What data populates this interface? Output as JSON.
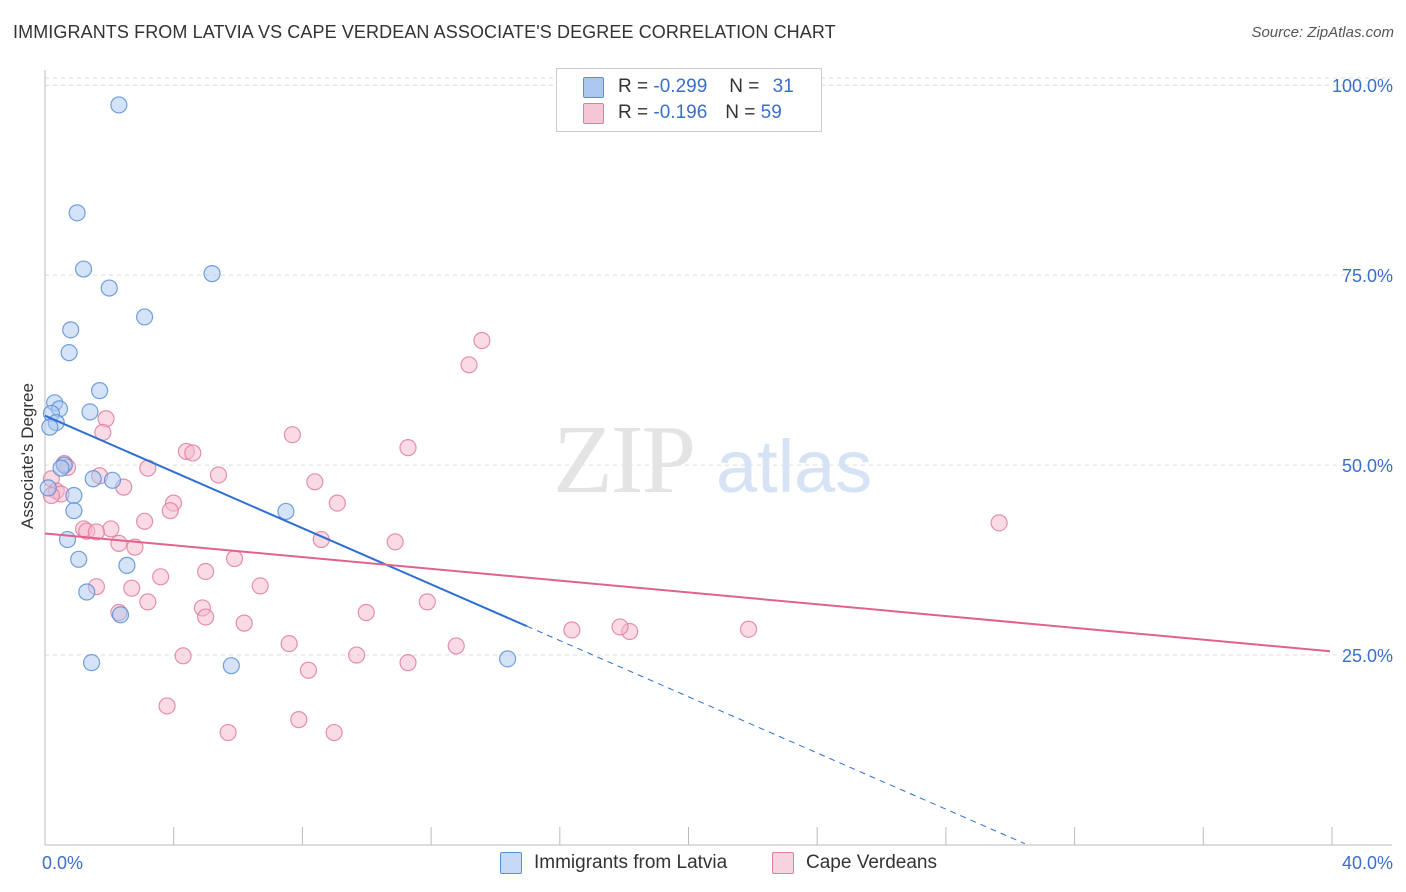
{
  "header": {
    "title": "IMMIGRANTS FROM LATVIA VS CAPE VERDEAN ASSOCIATE'S DEGREE CORRELATION CHART",
    "source": "Source: ZipAtlas.com"
  },
  "legend": {
    "rows": [
      {
        "r_label": "R = ",
        "r_value": "-0.299",
        "n_label": "N = ",
        "n_value": "31"
      },
      {
        "r_label": "R = ",
        "r_value": "-0.196",
        "n_label": "N = ",
        "n_value": "59"
      }
    ]
  },
  "colors": {
    "blue_fill": "#aac8ef",
    "blue_stroke": "#5b8fd6",
    "blue_line": "#2f6fd1",
    "pink_fill": "#f5b8cb",
    "pink_stroke": "#e07ea0",
    "pink_line": "#e0628e",
    "grid": "#dddddd",
    "tick_label": "#3a6fcc"
  },
  "chart_data": {
    "type": "scatter",
    "title": "IMMIGRANTS FROM LATVIA VS CAPE VERDEAN ASSOCIATE'S DEGREE CORRELATION CHART",
    "xlabel": "",
    "ylabel": "Associate's Degree",
    "xlim": [
      0,
      40
    ],
    "ylim": [
      0,
      102
    ],
    "x_tick_labels": [
      "0.0%",
      "40.0%"
    ],
    "y_ticks": [
      25,
      50,
      75,
      100
    ],
    "y_tick_labels": [
      "25.0%",
      "50.0%",
      "75.0%",
      "100.0%"
    ],
    "grid": true,
    "legend_position": "top-center",
    "watermark": {
      "zip": "ZIP",
      "atlas": "atlas"
    },
    "series": [
      {
        "name": "Immigrants from Latvia",
        "color": "blue",
        "trend": {
          "x0": 0,
          "y0": 56.5,
          "x1": 15,
          "y1": 28.8,
          "dash_to_x": 30.5
        },
        "points": [
          [
            2.3,
            97.4
          ],
          [
            1.0,
            83.2
          ],
          [
            1.2,
            75.8
          ],
          [
            5.2,
            75.2
          ],
          [
            2.0,
            73.3
          ],
          [
            3.1,
            69.5
          ],
          [
            0.8,
            67.8
          ],
          [
            0.75,
            64.8
          ],
          [
            1.7,
            59.8
          ],
          [
            0.3,
            58.2
          ],
          [
            0.45,
            57.4
          ],
          [
            0.2,
            56.8
          ],
          [
            1.4,
            57.0
          ],
          [
            0.35,
            55.6
          ],
          [
            0.15,
            55.0
          ],
          [
            0.6,
            50.0
          ],
          [
            0.5,
            49.6
          ],
          [
            1.5,
            48.2
          ],
          [
            2.1,
            48.0
          ],
          [
            0.9,
            46.0
          ],
          [
            0.9,
            44.0
          ],
          [
            7.5,
            43.9
          ],
          [
            0.7,
            40.2
          ],
          [
            1.05,
            37.6
          ],
          [
            2.55,
            36.8
          ],
          [
            1.3,
            33.3
          ],
          [
            2.35,
            30.3
          ],
          [
            1.45,
            24.0
          ],
          [
            5.8,
            23.6
          ],
          [
            14.4,
            24.5
          ],
          [
            0.1,
            47.0
          ]
        ]
      },
      {
        "name": "Cape Verdeans",
        "color": "pink",
        "trend": {
          "x0": 0,
          "y0": 41.0,
          "x1": 40,
          "y1": 25.5
        },
        "points": [
          [
            13.6,
            66.4
          ],
          [
            13.2,
            63.2
          ],
          [
            1.9,
            56.1
          ],
          [
            1.8,
            54.3
          ],
          [
            7.7,
            54.0
          ],
          [
            11.3,
            52.3
          ],
          [
            4.4,
            51.8
          ],
          [
            4.6,
            51.6
          ],
          [
            3.2,
            49.6
          ],
          [
            0.6,
            50.2
          ],
          [
            0.7,
            49.7
          ],
          [
            5.4,
            48.7
          ],
          [
            1.7,
            48.6
          ],
          [
            8.4,
            47.8
          ],
          [
            0.2,
            48.2
          ],
          [
            0.35,
            46.6
          ],
          [
            0.5,
            46.2
          ],
          [
            2.45,
            47.1
          ],
          [
            4.0,
            45.0
          ],
          [
            9.1,
            45.0
          ],
          [
            3.9,
            44.0
          ],
          [
            3.1,
            42.6
          ],
          [
            29.7,
            42.4
          ],
          [
            1.2,
            41.6
          ],
          [
            2.05,
            41.6
          ],
          [
            1.3,
            41.3
          ],
          [
            1.6,
            41.2
          ],
          [
            8.6,
            40.2
          ],
          [
            10.9,
            39.9
          ],
          [
            2.3,
            39.7
          ],
          [
            2.8,
            39.2
          ],
          [
            0.2,
            46.0
          ],
          [
            5.9,
            37.7
          ],
          [
            5.0,
            36.0
          ],
          [
            3.6,
            35.3
          ],
          [
            1.6,
            34.0
          ],
          [
            2.7,
            33.8
          ],
          [
            6.7,
            34.1
          ],
          [
            11.9,
            32.0
          ],
          [
            3.2,
            32.0
          ],
          [
            4.9,
            31.2
          ],
          [
            10.0,
            30.6
          ],
          [
            2.3,
            30.6
          ],
          [
            5.0,
            30.0
          ],
          [
            6.2,
            29.2
          ],
          [
            18.2,
            28.1
          ],
          [
            17.9,
            28.7
          ],
          [
            16.4,
            28.3
          ],
          [
            21.9,
            28.4
          ],
          [
            7.6,
            26.5
          ],
          [
            12.8,
            26.2
          ],
          [
            4.3,
            24.9
          ],
          [
            9.7,
            25.0
          ],
          [
            11.3,
            24.0
          ],
          [
            8.2,
            23.0
          ],
          [
            3.8,
            18.3
          ],
          [
            7.9,
            16.5
          ],
          [
            5.7,
            14.8
          ],
          [
            9.0,
            14.8
          ]
        ]
      }
    ]
  }
}
